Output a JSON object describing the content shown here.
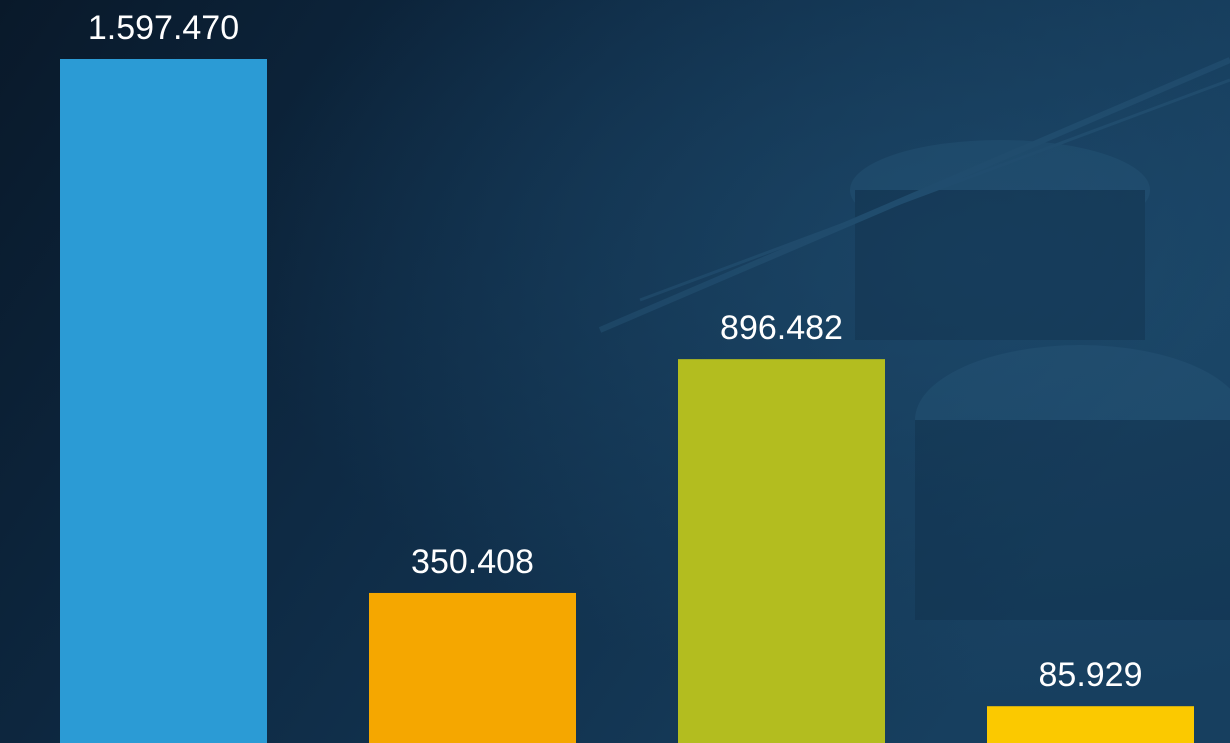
{
  "chart_data": {
    "type": "bar",
    "categories": [
      null,
      null,
      null,
      null
    ],
    "values": [
      1597470,
      350408,
      896482,
      85929
    ],
    "value_labels": [
      "1.597.470",
      "350.408",
      "896.482",
      "85.929"
    ],
    "colors": [
      "#2b9bd5",
      "#f5a700",
      "#b3bd1f",
      "#fbc900"
    ]
  }
}
